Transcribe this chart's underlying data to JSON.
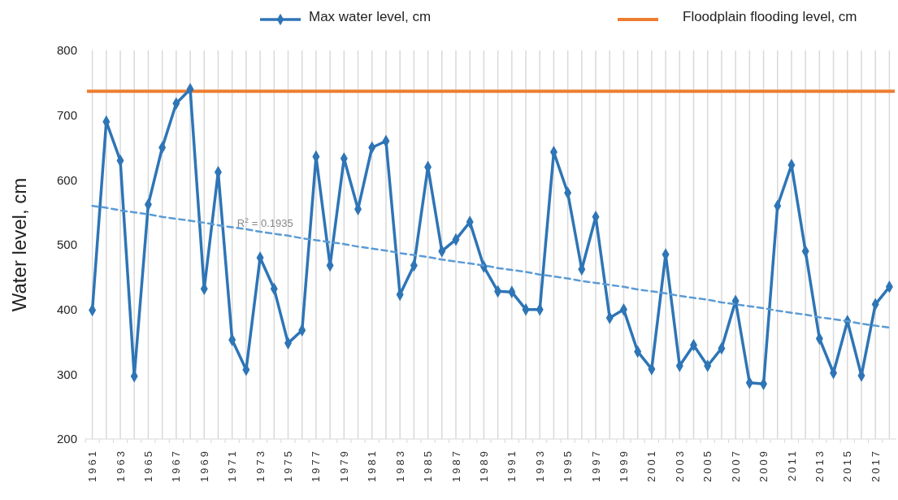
{
  "chart_data": {
    "type": "line",
    "ylabel": "Water level, cm",
    "categories": [
      "1961",
      null,
      "1963",
      null,
      "1965",
      null,
      "1967",
      null,
      "1969",
      null,
      "1971",
      null,
      "1973",
      null,
      "1975",
      null,
      "1977",
      null,
      "1979",
      null,
      "1981",
      null,
      "1983",
      null,
      "1985",
      null,
      "1987",
      null,
      "1989",
      null,
      "1991",
      null,
      "1993",
      null,
      "1995",
      null,
      "1997",
      null,
      "1999",
      null,
      "2001",
      null,
      "2003",
      null,
      "2005",
      null,
      "2007",
      null,
      "2009",
      null,
      "2011",
      null,
      "2013",
      null,
      "2015",
      null,
      "2017",
      null
    ],
    "series": [
      {
        "name": "Max water level, cm",
        "color": "#2e75b6",
        "marker": "diamond",
        "values": [
          399,
          690,
          630,
          297,
          562,
          650,
          718,
          740,
          432,
          612,
          353,
          307,
          480,
          432,
          348,
          368,
          636,
          468,
          633,
          555,
          650,
          660,
          423,
          468,
          620,
          490,
          508,
          535,
          466,
          428,
          427,
          400,
          400,
          643,
          580,
          462,
          543,
          387,
          400,
          335,
          308,
          485,
          313,
          345,
          313,
          340,
          413,
          287,
          285,
          560,
          623,
          490,
          355,
          302,
          382,
          298,
          408,
          435
        ]
      },
      {
        "type": "line",
        "color": "#5b9bd5",
        "line_style": "dashed",
        "marker": "none",
        "values": [
          560,
          557,
          553,
          550,
          547,
          543,
          540,
          537,
          534,
          530,
          527,
          524,
          520,
          517,
          514,
          510,
          507,
          504,
          501,
          497,
          494,
          491,
          487,
          484,
          481,
          477,
          474,
          471,
          468,
          464,
          461,
          458,
          454,
          451,
          448,
          444,
          441,
          438,
          435,
          431,
          428,
          425,
          421,
          418,
          415,
          411,
          408,
          405,
          402,
          398,
          395,
          392,
          388,
          385,
          382,
          378,
          375,
          372
        ]
      }
    ],
    "ref_lines": [
      {
        "axis": "y",
        "value": 737,
        "label": "Floodplain flooding level, cm",
        "color": "#ed7d31"
      }
    ],
    "annotations": [
      {
        "text": "R$^{2}$ = 0.1935",
        "x": "1971",
        "y": 527
      }
    ],
    "ylim": [
      200,
      800
    ],
    "yticks": [
      200,
      300,
      400,
      500,
      600,
      700,
      800
    ],
    "grid": "x",
    "legend": "top"
  }
}
